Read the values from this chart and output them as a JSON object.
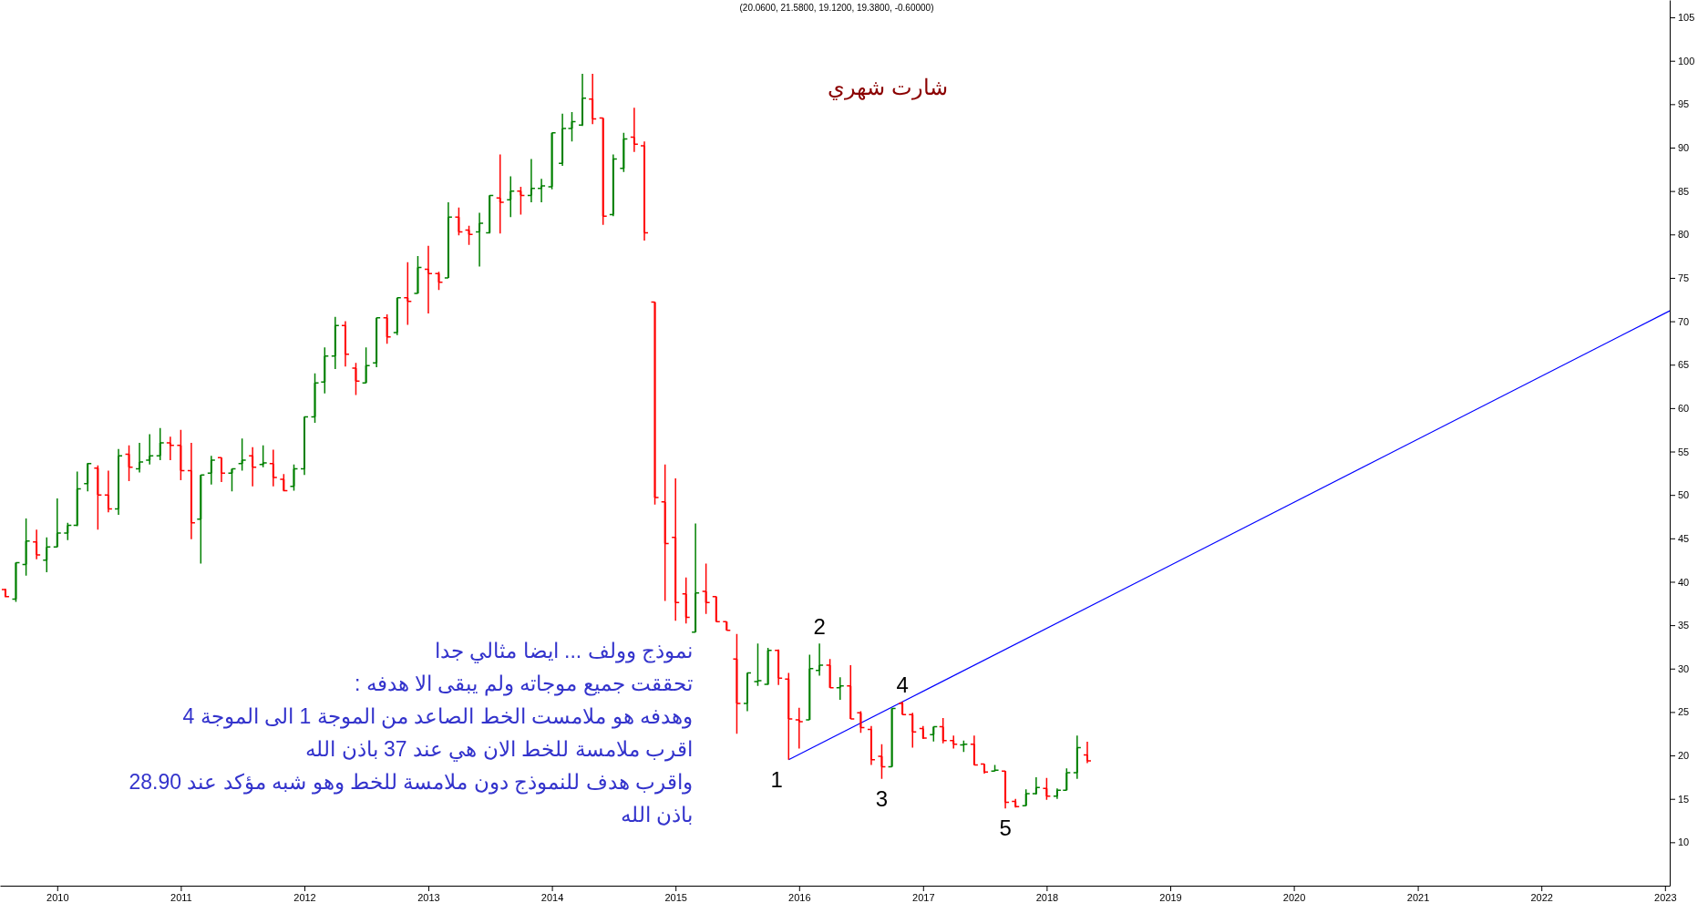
{
  "chart_data": {
    "type": "candlestick",
    "title": "(20.0600, 21.5800, 19.1200, 19.3800, -0.60000)",
    "subtitle": "شارت شهري",
    "x": [
      "2009-08",
      "2009-09",
      "2009-10",
      "2009-11",
      "2009-12",
      "2010-01",
      "2010-02",
      "2010-03",
      "2010-04",
      "2010-05",
      "2010-06",
      "2010-07",
      "2010-08",
      "2010-09",
      "2010-10",
      "2010-11",
      "2010-12",
      "2011-01",
      "2011-02",
      "2011-03",
      "2011-04",
      "2011-05",
      "2011-06",
      "2011-07",
      "2011-08",
      "2011-09",
      "2011-10",
      "2011-11",
      "2011-12",
      "2012-01",
      "2012-02",
      "2012-03",
      "2012-04",
      "2012-05",
      "2012-06",
      "2012-07",
      "2012-08",
      "2012-09",
      "2012-10",
      "2012-11",
      "2012-12",
      "2013-01",
      "2013-02",
      "2013-03",
      "2013-04",
      "2013-05",
      "2013-06",
      "2013-07",
      "2013-08",
      "2013-09",
      "2013-10",
      "2013-11",
      "2013-12",
      "2014-01",
      "2014-02",
      "2014-03",
      "2014-04",
      "2014-05",
      "2014-06",
      "2014-07",
      "2014-08",
      "2014-09",
      "2014-10",
      "2014-11",
      "2014-12",
      "2015-01",
      "2015-02",
      "2015-03",
      "2015-04",
      "2015-05",
      "2015-06",
      "2015-07",
      "2015-08",
      "2015-09",
      "2015-10",
      "2015-11",
      "2015-12",
      "2016-01",
      "2016-02",
      "2016-03",
      "2016-04",
      "2016-05",
      "2016-06",
      "2016-07",
      "2016-08",
      "2016-09",
      "2016-10",
      "2016-11",
      "2016-12",
      "2017-01",
      "2017-02",
      "2017-03",
      "2017-04",
      "2017-05",
      "2017-06",
      "2017-07",
      "2017-08",
      "2017-09",
      "2017-10",
      "2017-11",
      "2017-12",
      "2018-01",
      "2018-02",
      "2018-03",
      "2018-04",
      "2018-05"
    ],
    "series": [
      {
        "ohlc": [
          [
            39.1,
            39.2,
            38.2,
            38.3
          ],
          [
            38.0,
            42.2,
            37.7,
            42.2
          ],
          [
            42.0,
            47.3,
            40.7,
            44.7
          ],
          [
            44.6,
            46.0,
            42.6,
            43.1
          ],
          [
            42.5,
            45.1,
            41.1,
            44.0
          ],
          [
            44.0,
            49.6,
            44.0,
            45.6
          ],
          [
            45.6,
            46.8,
            44.8,
            46.5
          ],
          [
            46.5,
            52.7,
            46.4,
            50.7
          ],
          [
            51.3,
            53.7,
            50.4,
            53.6
          ],
          [
            53.1,
            53.4,
            46.0,
            50.0
          ],
          [
            50.0,
            52.8,
            48.0,
            48.4
          ],
          [
            48.4,
            55.3,
            47.7,
            54.5
          ],
          [
            54.7,
            55.7,
            51.6,
            53.2
          ],
          [
            53.0,
            56.0,
            52.6,
            53.8
          ],
          [
            54.0,
            57.0,
            53.5,
            54.5
          ],
          [
            54.5,
            57.7,
            54.0,
            56.0
          ],
          [
            56.0,
            56.7,
            54.0,
            55.7
          ],
          [
            55.7,
            57.5,
            51.7,
            52.8
          ],
          [
            52.8,
            56.0,
            44.9,
            46.8
          ],
          [
            47.2,
            52.3,
            42.1,
            52.3
          ],
          [
            52.5,
            54.5,
            51.2,
            54.0
          ],
          [
            54.3,
            54.3,
            51.5,
            52.5
          ],
          [
            52.5,
            53.0,
            50.4,
            53.0
          ],
          [
            53.6,
            56.5,
            52.8,
            54.0
          ],
          [
            54.5,
            55.5,
            51.0,
            53.2
          ],
          [
            53.5,
            55.7,
            53.2,
            53.7
          ],
          [
            53.6,
            55.2,
            51.0,
            52.0
          ],
          [
            51.8,
            52.4,
            50.4,
            50.5
          ],
          [
            51.0,
            53.5,
            50.5,
            53.0
          ],
          [
            53.0,
            59.0,
            52.3,
            59.0
          ],
          [
            59.0,
            64.0,
            58.3,
            62.9
          ],
          [
            63.0,
            67.0,
            61.7,
            66.0
          ],
          [
            66.0,
            70.5,
            64.5,
            69.5
          ],
          [
            69.5,
            70.0,
            64.8,
            66.2
          ],
          [
            64.6,
            65.2,
            61.5,
            63.1
          ],
          [
            62.9,
            67.0,
            62.9,
            64.9
          ],
          [
            65.2,
            70.4,
            64.7,
            70.4
          ],
          [
            70.4,
            70.8,
            67.4,
            68.2
          ],
          [
            68.7,
            72.7,
            68.4,
            72.7
          ],
          [
            72.7,
            76.8,
            69.6,
            72.3
          ],
          [
            73.2,
            77.5,
            73.2,
            76.2
          ],
          [
            76.0,
            78.7,
            70.9,
            75.5
          ],
          [
            75.5,
            75.7,
            73.6,
            74.5
          ],
          [
            75.0,
            83.7,
            75.0,
            82.0
          ],
          [
            82.0,
            83.1,
            79.9,
            80.3
          ],
          [
            80.5,
            81.0,
            78.8,
            80.0
          ],
          [
            80.3,
            82.5,
            76.3,
            81.3
          ],
          [
            80.2,
            84.5,
            80.1,
            84.5
          ],
          [
            84.2,
            89.2,
            80.1,
            83.7
          ],
          [
            84.0,
            86.7,
            82.0,
            85.0
          ],
          [
            85.0,
            85.5,
            82.3,
            84.5
          ],
          [
            84.5,
            88.7,
            83.7,
            85.3
          ],
          [
            85.3,
            86.4,
            83.7,
            85.6
          ],
          [
            85.5,
            91.7,
            85.2,
            91.7
          ],
          [
            88.2,
            93.9,
            87.9,
            92.2
          ],
          [
            92.2,
            94.1,
            90.7,
            93.0
          ],
          [
            92.6,
            98.5,
            92.5,
            95.7
          ],
          [
            95.6,
            98.5,
            92.7,
            93.3
          ],
          [
            93.4,
            93.4,
            81.1,
            82.1
          ],
          [
            82.3,
            89.2,
            82.1,
            88.7
          ],
          [
            87.6,
            91.7,
            87.2,
            91.0
          ],
          [
            91.2,
            94.6,
            89.5,
            90.4
          ],
          [
            90.2,
            90.7,
            79.3,
            80.2
          ],
          [
            72.2,
            72.2,
            48.9,
            49.7
          ],
          [
            49.2,
            53.5,
            37.8,
            44.4
          ],
          [
            45.1,
            51.9,
            35.5,
            37.6
          ],
          [
            38.6,
            40.5,
            35.2,
            35.9
          ],
          [
            34.2,
            46.7,
            34.2,
            38.7
          ],
          [
            38.9,
            42.1,
            36.3,
            37.6
          ],
          [
            38.3,
            38.3,
            35.4,
            35.4
          ],
          [
            35.4,
            35.4,
            34.4,
            34.4
          ],
          [
            31.1,
            34.0,
            22.5,
            26.0
          ],
          [
            26.0,
            29.5,
            25.1,
            29.5
          ],
          [
            28.5,
            32.9,
            28.0,
            28.6
          ],
          [
            28.2,
            32.4,
            28.1,
            32.1
          ],
          [
            32.1,
            32.2,
            28.1,
            28.9
          ],
          [
            28.8,
            29.5,
            19.5,
            24.2
          ],
          [
            24.1,
            25.5,
            20.8,
            23.9
          ],
          [
            24.1,
            31.6,
            24.1,
            30.0
          ],
          [
            29.8,
            32.9,
            29.2,
            30.4
          ],
          [
            30.4,
            31.1,
            27.8,
            27.8
          ],
          [
            27.8,
            29.0,
            26.4,
            28.0
          ],
          [
            28.0,
            30.4,
            24.2,
            24.2
          ],
          [
            24.9,
            25.1,
            22.6,
            23.2
          ],
          [
            23.0,
            23.4,
            18.9,
            19.5
          ],
          [
            19.9,
            21.3,
            17.3,
            18.7
          ],
          [
            18.7,
            25.4,
            18.7,
            25.4
          ],
          [
            26.0,
            26.2,
            24.7,
            24.7
          ],
          [
            24.7,
            24.9,
            20.9,
            22.7
          ],
          [
            23.1,
            23.4,
            21.9,
            22.0
          ],
          [
            22.4,
            23.3,
            21.6,
            23.3
          ],
          [
            23.3,
            24.3,
            21.4,
            21.7
          ],
          [
            21.7,
            22.3,
            20.8,
            21.3
          ],
          [
            21.2,
            21.7,
            20.4,
            21.3
          ],
          [
            21.3,
            22.3,
            18.9,
            18.9
          ],
          [
            19.0,
            19.0,
            17.9,
            18.1
          ],
          [
            18.2,
            18.9,
            18.2,
            18.3
          ],
          [
            18.2,
            18.2,
            13.9,
            14.6
          ],
          [
            14.7,
            15.0,
            14.0,
            14.1
          ],
          [
            14.2,
            16.1,
            14.2,
            15.6
          ],
          [
            15.6,
            17.5,
            15.5,
            16.3
          ],
          [
            16.2,
            17.4,
            14.9,
            15.3
          ],
          [
            15.3,
            16.2,
            15.0,
            16.0
          ],
          [
            16.0,
            18.5,
            16.0,
            18.0
          ],
          [
            18.0,
            22.3,
            17.3,
            20.9
          ],
          [
            20.06,
            21.58,
            19.12,
            19.38
          ]
        ],
        "colors": [
          "#ff0000",
          "#008000",
          "#008000",
          "#ff0000",
          "#008000",
          "#008000",
          "#008000",
          "#008000",
          "#008000",
          "#ff0000",
          "#ff0000",
          "#008000",
          "#ff0000",
          "#008000",
          "#008000",
          "#008000",
          "#ff0000",
          "#ff0000",
          "#ff0000",
          "#008000",
          "#008000",
          "#ff0000",
          "#008000",
          "#008000",
          "#ff0000",
          "#008000",
          "#ff0000",
          "#ff0000",
          "#008000",
          "#008000",
          "#008000",
          "#008000",
          "#008000",
          "#ff0000",
          "#ff0000",
          "#008000",
          "#008000",
          "#ff0000",
          "#008000",
          "#ff0000",
          "#008000",
          "#ff0000",
          "#ff0000",
          "#008000",
          "#ff0000",
          "#ff0000",
          "#008000",
          "#008000",
          "#ff0000",
          "#008000",
          "#ff0000",
          "#008000",
          "#008000",
          "#008000",
          "#008000",
          "#008000",
          "#008000",
          "#ff0000",
          "#ff0000",
          "#008000",
          "#008000",
          "#ff0000",
          "#ff0000",
          "#ff0000",
          "#ff0000",
          "#ff0000",
          "#ff0000",
          "#008000",
          "#ff0000",
          "#ff0000",
          "#ff0000",
          "#ff0000",
          "#008000",
          "#008000",
          "#008000",
          "#ff0000",
          "#ff0000",
          "#ff0000",
          "#008000",
          "#008000",
          "#ff0000",
          "#008000",
          "#ff0000",
          "#ff0000",
          "#ff0000",
          "#ff0000",
          "#008000",
          "#ff0000",
          "#ff0000",
          "#ff0000",
          "#008000",
          "#ff0000",
          "#ff0000",
          "#008000",
          "#ff0000",
          "#ff0000",
          "#008000",
          "#ff0000",
          "#ff0000",
          "#008000",
          "#008000",
          "#ff0000",
          "#008000",
          "#008000",
          "#008000",
          "#ff0000"
        ]
      },
      {
        "type": "line",
        "x": [
          "2015-12",
          "2023-01-15"
        ],
        "values": [
          19.5,
          71.2
        ],
        "color": "#0000ff"
      }
    ],
    "xlim": [
      "2009-07-16",
      "2023-01-15"
    ],
    "xticks": [
      "2010",
      "2011",
      "2012",
      "2013",
      "2014",
      "2015",
      "2016",
      "2017",
      "2018",
      "2019",
      "2020",
      "2021",
      "2022",
      "2023"
    ],
    "ylim": [
      5,
      107
    ],
    "yticks": [
      10,
      15,
      20,
      25,
      30,
      35,
      40,
      45,
      50,
      55,
      60,
      65,
      70,
      75,
      80,
      85,
      90,
      95,
      100,
      105
    ],
    "grid": false,
    "annotations": [
      "نموذج وولف ... ايضا مثالي جدا",
      "تحققت جميع موجاته ولم يبقى الا هدفه :",
      "وهدفه هو ملامست الخط الصاعد من الموجة 1 الى الموجة 4",
      "اقرب ملامسة للخط الان هي عند 37 باذن الله",
      "واقرب هدف للنموذج دون ملامسة للخط وهو شبه مؤكد عند 28.90",
      "باذن الله",
      {
        "text": "1",
        "x": "2015-12",
        "y": 19.5
      },
      {
        "text": "2",
        "x": "2016-03",
        "y": 32.9
      },
      {
        "text": "3",
        "x": "2016-09",
        "y": 17.3
      },
      {
        "text": "4",
        "x": "2016-11",
        "y": 26.2
      },
      {
        "text": "5",
        "x": "2017-09",
        "y": 13.9
      }
    ]
  }
}
